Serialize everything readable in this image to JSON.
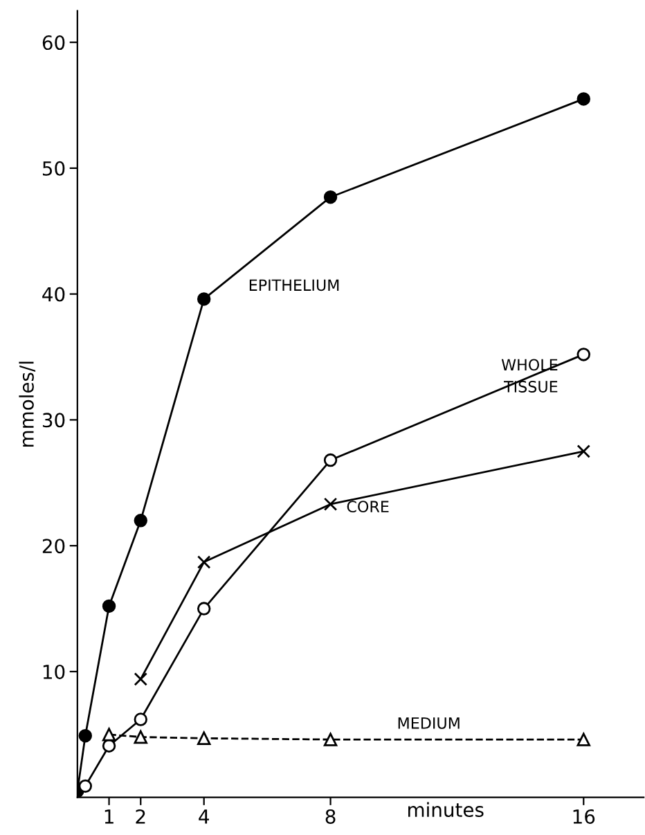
{
  "chart_data": {
    "type": "line",
    "xlabel": "minutes",
    "ylabel": "mmoles/l",
    "xlim": [
      0,
      17.9
    ],
    "ylim": [
      0,
      62.5
    ],
    "xticks": [
      1,
      2,
      4,
      8,
      16
    ],
    "yticks": [
      10,
      20,
      30,
      40,
      50,
      60
    ],
    "grid": false,
    "legend": false,
    "series": [
      {
        "name": "EPITHELIUM",
        "color": "#000000",
        "marker": "circle",
        "x": [
          0,
          0.25,
          1,
          2,
          4,
          8,
          16
        ],
        "values": [
          0.5,
          4.9,
          15.2,
          22,
          39.6,
          47.7,
          55.5
        ]
      },
      {
        "name": "WHOLE TISSUE",
        "color": "#000000",
        "marker": "circle",
        "x": [
          0.25,
          1,
          2,
          4,
          8,
          16
        ],
        "values": [
          0.9,
          4.1,
          6.2,
          15,
          26.8,
          35.2
        ]
      },
      {
        "name": "CORE",
        "color": "#000000",
        "marker": "cross",
        "x": [
          2,
          4,
          8,
          16
        ],
        "values": [
          9.4,
          18.7,
          23.3,
          27.5
        ]
      },
      {
        "name": "MEDIUM",
        "color": "#000000",
        "marker": "triangle",
        "line_style": "dashed",
        "x": [
          1,
          2,
          4,
          8,
          16
        ],
        "values": [
          5,
          4.8,
          4.7,
          4.6,
          4.6
        ]
      }
    ]
  }
}
